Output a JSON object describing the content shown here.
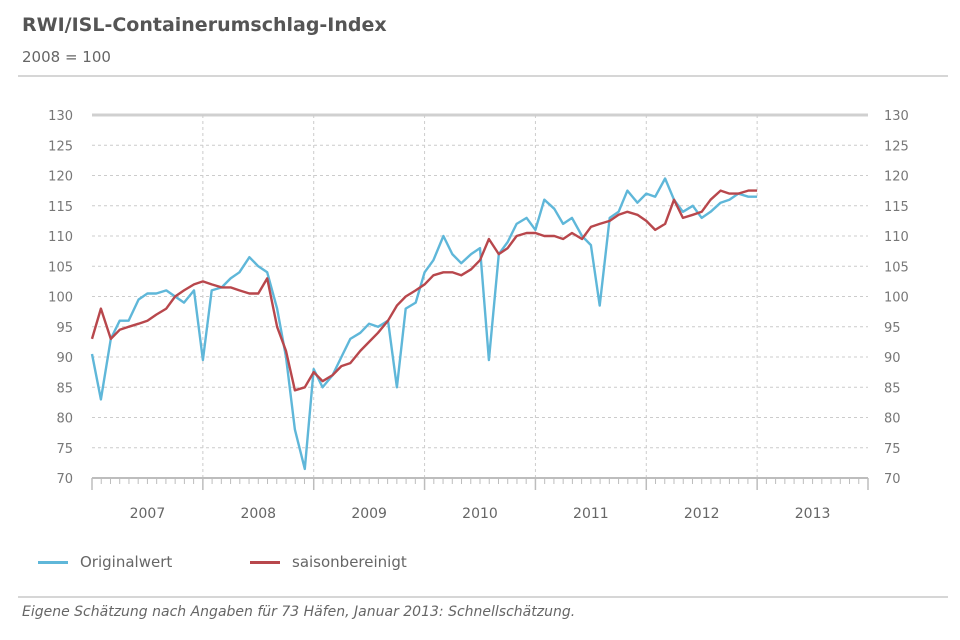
{
  "header": {
    "title": "RWI/ISL-Containerumschlag-Index",
    "subtitle": "2008 = 100"
  },
  "footnote": "Eigene Schätzung nach Angaben für 73 Häfen, Januar 2013: Schnellschätzung.",
  "colors": {
    "original": "#5fb7d9",
    "seasonal": "#b8474c",
    "grid": "#cccccc",
    "axis": "#bdbdbd"
  },
  "chart_data": {
    "type": "line",
    "y_ticks": [
      "130",
      "125",
      "120",
      "115",
      "110",
      "105",
      "100",
      "95",
      "90",
      "85",
      "80",
      "75",
      "70"
    ],
    "x_tick_labels": [
      "2007",
      "2008",
      "2009",
      "2010",
      "2011",
      "2012",
      "2013"
    ],
    "ylim": [
      70,
      130
    ],
    "xlim": [
      2007,
      2014
    ],
    "grid": true,
    "legend_position": "bottom-left",
    "series": [
      {
        "name": "Originalwert",
        "color": "#5fb7d9",
        "x": [
          2007.0,
          2007.08,
          2007.17,
          2007.25,
          2007.33,
          2007.42,
          2007.5,
          2007.58,
          2007.67,
          2007.75,
          2007.83,
          2007.92,
          2008.0,
          2008.08,
          2008.17,
          2008.25,
          2008.33,
          2008.42,
          2008.5,
          2008.58,
          2008.67,
          2008.75,
          2008.83,
          2008.92,
          2009.0,
          2009.08,
          2009.17,
          2009.25,
          2009.33,
          2009.42,
          2009.5,
          2009.58,
          2009.67,
          2009.75,
          2009.83,
          2009.92,
          2010.0,
          2010.08,
          2010.17,
          2010.25,
          2010.33,
          2010.42,
          2010.5,
          2010.58,
          2010.67,
          2010.75,
          2010.83,
          2010.92,
          2011.0,
          2011.08,
          2011.17,
          2011.25,
          2011.33,
          2011.42,
          2011.5,
          2011.58,
          2011.67,
          2011.75,
          2011.83,
          2011.92,
          2012.0,
          2012.08,
          2012.17,
          2012.25,
          2012.33,
          2012.42,
          2012.5,
          2012.58,
          2012.67,
          2012.75,
          2012.83,
          2012.92,
          2013.0
        ],
        "y": [
          90.5,
          83,
          93,
          96,
          96,
          99.5,
          100.5,
          100.5,
          101,
          100,
          99,
          101,
          89.5,
          101,
          101.5,
          103,
          104,
          106.5,
          105,
          104,
          98,
          90,
          78,
          71.5,
          88,
          85,
          87,
          90,
          93,
          94,
          95.5,
          95,
          96,
          85,
          98,
          99,
          104,
          106,
          110,
          107,
          105.5,
          107,
          108,
          89.5,
          107,
          109,
          112,
          113,
          111,
          116,
          114.5,
          112,
          113,
          110,
          108.5,
          98.5,
          113,
          114,
          117.5,
          115.5,
          117,
          116.5,
          119.5,
          116,
          114,
          115,
          113,
          114,
          115.5,
          116,
          117,
          116.5,
          116.5
        ]
      },
      {
        "name": "saisonbereinigt",
        "color": "#b8474c",
        "x": [
          2007.0,
          2007.08,
          2007.17,
          2007.25,
          2007.33,
          2007.42,
          2007.5,
          2007.58,
          2007.67,
          2007.75,
          2007.83,
          2007.92,
          2008.0,
          2008.08,
          2008.17,
          2008.25,
          2008.33,
          2008.42,
          2008.5,
          2008.58,
          2008.67,
          2008.75,
          2008.83,
          2008.92,
          2009.0,
          2009.08,
          2009.17,
          2009.25,
          2009.33,
          2009.42,
          2009.5,
          2009.58,
          2009.67,
          2009.75,
          2009.83,
          2009.92,
          2010.0,
          2010.08,
          2010.17,
          2010.25,
          2010.33,
          2010.42,
          2010.5,
          2010.58,
          2010.67,
          2010.75,
          2010.83,
          2010.92,
          2011.0,
          2011.08,
          2011.17,
          2011.25,
          2011.33,
          2011.42,
          2011.5,
          2011.58,
          2011.67,
          2011.75,
          2011.83,
          2011.92,
          2012.0,
          2012.08,
          2012.17,
          2012.25,
          2012.33,
          2012.42,
          2012.5,
          2012.58,
          2012.67,
          2012.75,
          2012.83,
          2012.92,
          2013.0
        ],
        "y": [
          93,
          98,
          93,
          94.5,
          95,
          95.5,
          96,
          97,
          98,
          100,
          101,
          102,
          102.5,
          102,
          101.5,
          101.5,
          101,
          100.5,
          100.5,
          103,
          95,
          91,
          84.5,
          85,
          87.5,
          86,
          87,
          88.5,
          89,
          91,
          92.5,
          94,
          96,
          98.5,
          100,
          101,
          102,
          103.5,
          104,
          104,
          103.5,
          104.5,
          106,
          109.5,
          107,
          108,
          110,
          110.5,
          110.5,
          110,
          110,
          109.5,
          110.5,
          109.5,
          111.5,
          112,
          112.5,
          113.5,
          114,
          113.5,
          112.5,
          111,
          112,
          116,
          113,
          113.5,
          114,
          116,
          117.5,
          117,
          117,
          117.5,
          117.5
        ]
      }
    ]
  }
}
